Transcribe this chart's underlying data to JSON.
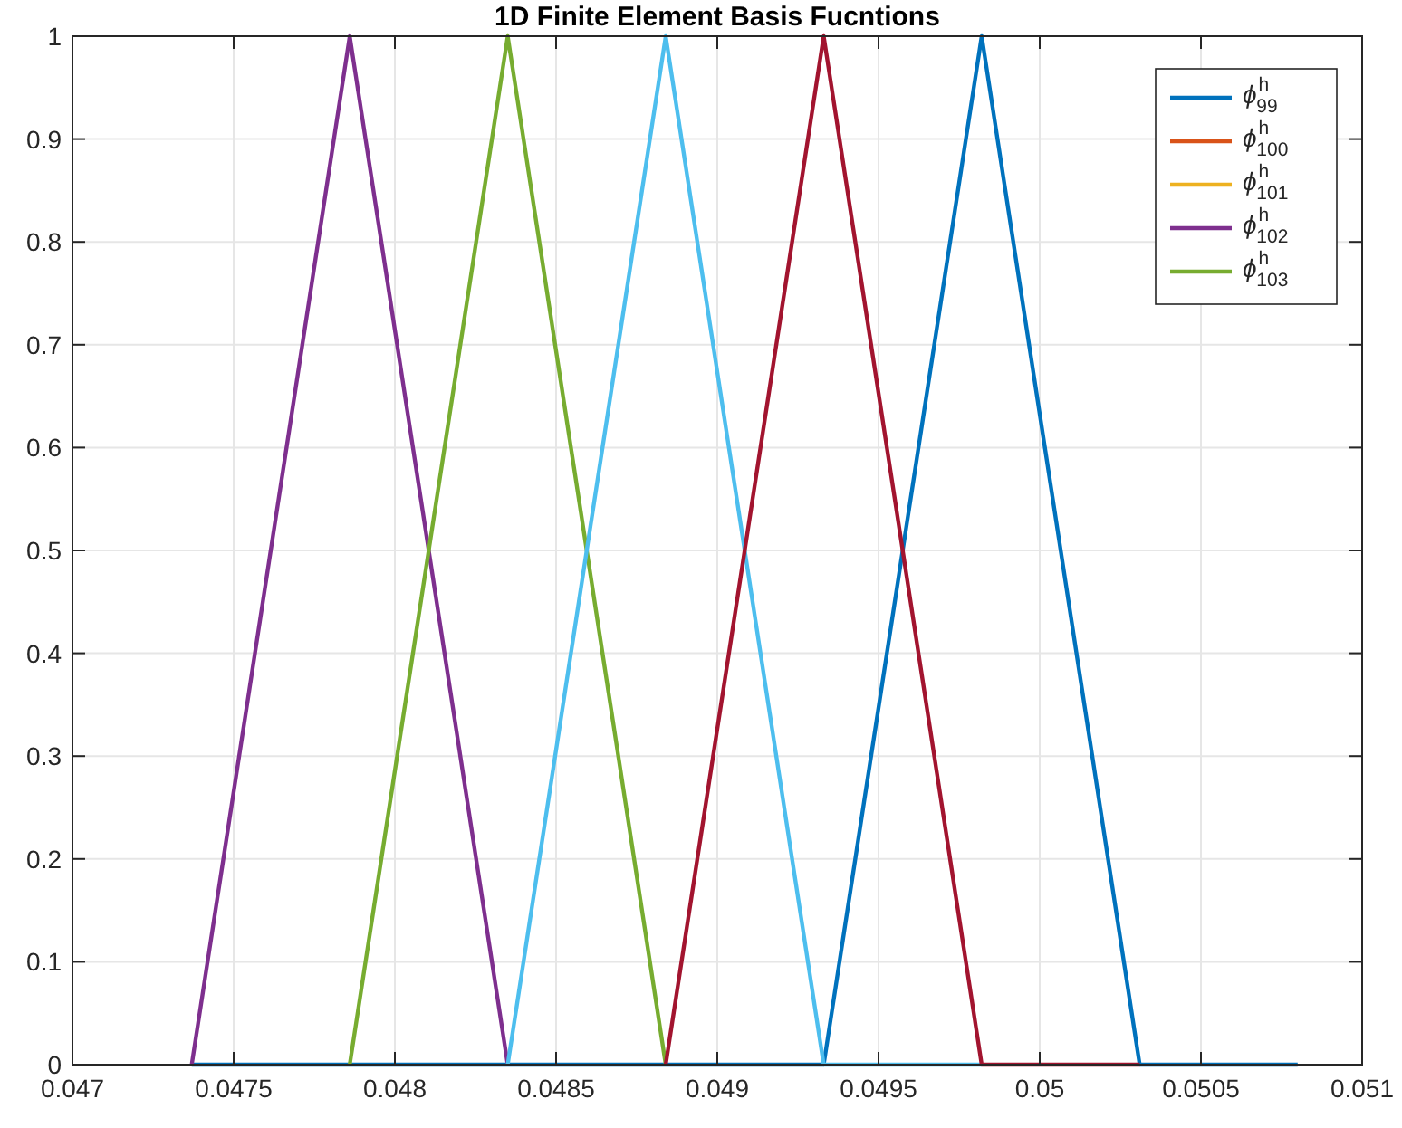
{
  "chart_data": {
    "type": "line",
    "title": "1D Finite Element Basis Fucntions",
    "xlim": [
      0.047,
      0.051
    ],
    "xticks": [
      0.047,
      0.0475,
      0.048,
      0.0485,
      0.049,
      0.0495,
      0.05,
      0.0505,
      0.051
    ],
    "ylim": [
      0,
      1
    ],
    "yticks": [
      0,
      0.1,
      0.2,
      0.3,
      0.4,
      0.5,
      0.6,
      0.7,
      0.8,
      0.9,
      1
    ],
    "grid": true,
    "legend": "top right",
    "line_style": "solid",
    "marker": "none",
    "series": [
      {
        "name": "ϕ$^{h}$$_{99}$",
        "color": "#0072bd",
        "x": [
          0.04737,
          0.04933,
          0.04982,
          0.05031,
          0.0508
        ],
        "values": [
          0,
          0,
          1,
          0,
          0
        ]
      },
      {
        "name": "ϕ$^{h}$$_{100}$",
        "color": "#d95319"
      },
      {
        "name": "ϕ$^{h}$$_{101}$",
        "color": "#edb120"
      },
      {
        "name": "ϕ$^{h}$$_{102}$",
        "color": "#7e2f8e",
        "x": [
          0.04737,
          0.04786,
          0.04835
        ],
        "values": [
          0,
          1,
          0
        ]
      },
      {
        "name": "ϕ$^{h}$$_{103}$",
        "color": "#77ac30",
        "x": [
          0.04786,
          0.04835,
          0.04884
        ],
        "values": [
          0,
          1,
          0
        ]
      },
      {
        "color": "#4dbeee",
        "x": [
          0.04835,
          0.04884,
          0.04933,
          0.04982
        ],
        "values": [
          0,
          1,
          0,
          0
        ]
      },
      {
        "color": "#a2142f",
        "x": [
          0.04884,
          0.04933,
          0.04982,
          0.05031
        ],
        "values": [
          0,
          1,
          0,
          0
        ]
      }
    ]
  }
}
